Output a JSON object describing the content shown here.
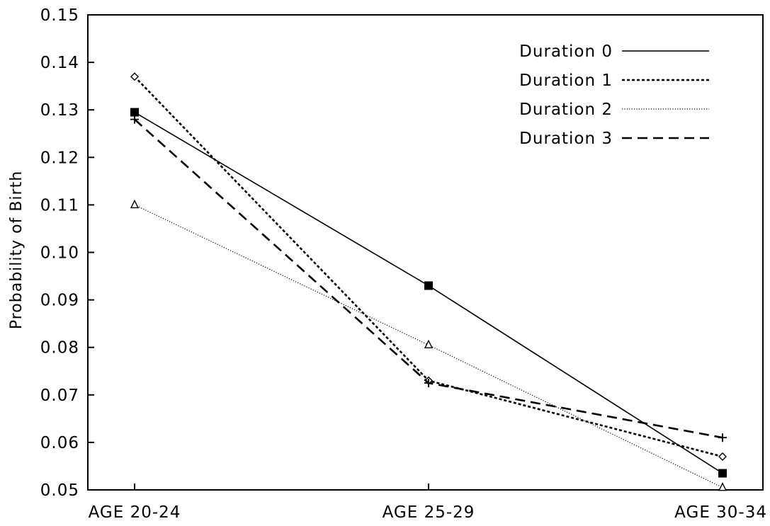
{
  "chart_data": {
    "type": "line",
    "title": "",
    "xlabel": "",
    "ylabel": "Probability of Birth",
    "categories": [
      "AGE 20-24",
      "AGE 25-29",
      "AGE 30-34"
    ],
    "ylim": [
      0.05,
      0.15
    ],
    "yticks": [
      "0.05",
      "0.06",
      "0.07",
      "0.08",
      "0.09",
      "0.10",
      "0.11",
      "0.12",
      "0.13",
      "0.14",
      "0.15"
    ],
    "grid": false,
    "legend_position": "top-right",
    "series": [
      {
        "name": "Duration 0",
        "values": [
          0.1295,
          0.093,
          0.0535
        ],
        "marker": "filled-square",
        "dash": "solid",
        "color": "#000000"
      },
      {
        "name": "Duration 1",
        "values": [
          0.137,
          0.073,
          0.057
        ],
        "marker": "diamond",
        "dash": "dotted",
        "color": "#000000"
      },
      {
        "name": "Duration 2",
        "values": [
          0.11,
          0.0805,
          0.0505
        ],
        "marker": "triangle",
        "dash": "fine-dotted",
        "color": "#000000"
      },
      {
        "name": "Duration 3",
        "values": [
          0.128,
          0.0725,
          0.061
        ],
        "marker": "plus",
        "dash": "dashed",
        "color": "#000000"
      }
    ]
  }
}
